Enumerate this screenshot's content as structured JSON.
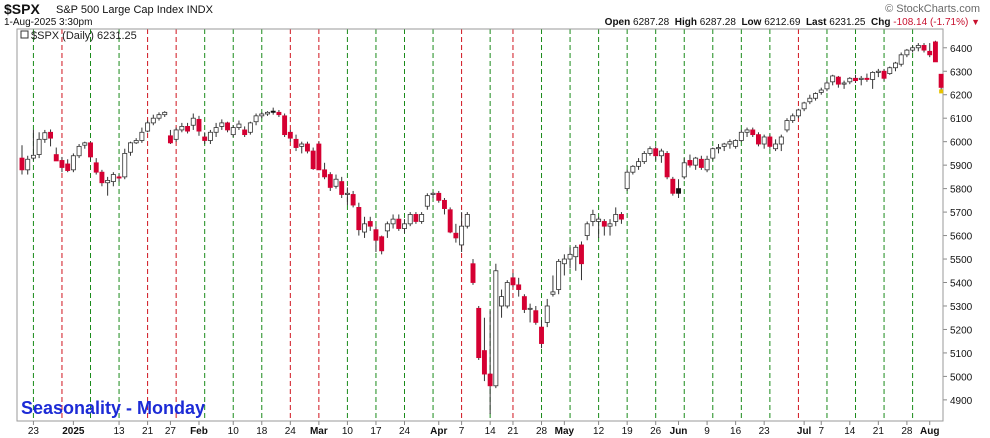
{
  "header": {
    "symbol": "$SPX",
    "name": "S&P 500 Large Cap Index INDX",
    "date": "1-Aug-2025 3:30pm",
    "brand": "© StockCharts.com",
    "open_label": "Open",
    "open": "6287.28",
    "high_label": "High",
    "high": "6287.28",
    "low_label": "Low",
    "low": "6212.69",
    "last_label": "Last",
    "last": "6231.25",
    "chg_label": "Chg",
    "chg": "-108.14 (-1.71%)",
    "change_icon": "down-triangle-icon"
  },
  "chart_data": {
    "type": "candlestick",
    "legend": "$SPX (Daily) 6231.25",
    "title": "Seasonality - Monday",
    "ylim": [
      4810,
      6480
    ],
    "y_ticks": [
      4900,
      5000,
      5100,
      5200,
      5300,
      5400,
      5500,
      5600,
      5700,
      5800,
      5900,
      6000,
      6100,
      6200,
      6300,
      6400
    ],
    "x_ticks": [
      {
        "label": "23",
        "idx": 2
      },
      {
        "label": "2025",
        "idx": 9,
        "bold": true
      },
      {
        "label": "13",
        "idx": 17
      },
      {
        "label": "21",
        "idx": 22
      },
      {
        "label": "27",
        "idx": 26
      },
      {
        "label": "Feb",
        "idx": 31,
        "bold": true
      },
      {
        "label": "10",
        "idx": 37
      },
      {
        "label": "18",
        "idx": 42
      },
      {
        "label": "24",
        "idx": 47
      },
      {
        "label": "Mar",
        "idx": 52,
        "bold": true
      },
      {
        "label": "10",
        "idx": 57
      },
      {
        "label": "17",
        "idx": 62
      },
      {
        "label": "24",
        "idx": 67
      },
      {
        "label": "Apr",
        "idx": 73,
        "bold": true
      },
      {
        "label": "7",
        "idx": 77
      },
      {
        "label": "14",
        "idx": 82
      },
      {
        "label": "21",
        "idx": 86
      },
      {
        "label": "28",
        "idx": 91
      },
      {
        "label": "May",
        "idx": 95,
        "bold": true
      },
      {
        "label": "12",
        "idx": 101
      },
      {
        "label": "19",
        "idx": 106
      },
      {
        "label": "26",
        "idx": 111
      },
      {
        "label": "Jun",
        "idx": 115,
        "bold": true
      },
      {
        "label": "9",
        "idx": 120
      },
      {
        "label": "16",
        "idx": 125
      },
      {
        "label": "23",
        "idx": 130
      },
      {
        "label": "Jul",
        "idx": 137,
        "bold": true
      },
      {
        "label": "7",
        "idx": 140
      },
      {
        "label": "14",
        "idx": 145
      },
      {
        "label": "21",
        "idx": 150
      },
      {
        "label": "28",
        "idx": 155
      },
      {
        "label": "Aug",
        "idx": 159,
        "bold": true
      }
    ],
    "monday_lines": [
      {
        "idx": 2,
        "color": "green"
      },
      {
        "idx": 7,
        "color": "red"
      },
      {
        "idx": 12,
        "color": "green"
      },
      {
        "idx": 17,
        "color": "green"
      },
      {
        "idx": 22,
        "color": "red"
      },
      {
        "idx": 27,
        "color": "red"
      },
      {
        "idx": 32,
        "color": "green"
      },
      {
        "idx": 37,
        "color": "green"
      },
      {
        "idx": 42,
        "color": "green"
      },
      {
        "idx": 47,
        "color": "red"
      },
      {
        "idx": 52,
        "color": "red"
      },
      {
        "idx": 57,
        "color": "green"
      },
      {
        "idx": 62,
        "color": "green"
      },
      {
        "idx": 67,
        "color": "green"
      },
      {
        "idx": 72,
        "color": "green"
      },
      {
        "idx": 77,
        "color": "red"
      },
      {
        "idx": 82,
        "color": "green"
      },
      {
        "idx": 86,
        "color": "red"
      },
      {
        "idx": 91,
        "color": "green"
      },
      {
        "idx": 96,
        "color": "green"
      },
      {
        "idx": 101,
        "color": "green"
      },
      {
        "idx": 106,
        "color": "green"
      },
      {
        "idx": 111,
        "color": "green"
      },
      {
        "idx": 116,
        "color": "green"
      },
      {
        "idx": 121,
        "color": "green"
      },
      {
        "idx": 126,
        "color": "green"
      },
      {
        "idx": 131,
        "color": "green"
      },
      {
        "idx": 136,
        "color": "red"
      },
      {
        "idx": 141,
        "color": "green"
      },
      {
        "idx": 146,
        "color": "green"
      },
      {
        "idx": 151,
        "color": "green"
      },
      {
        "idx": 156,
        "color": "green"
      }
    ],
    "candle_colors": {
      "up": "#ffffff",
      "down": "#d50032",
      "down_black": "#111111",
      "outline": "#333333"
    },
    "candles": [
      {
        "o": 5930,
        "h": 5985,
        "l": 5860,
        "c": 5880
      },
      {
        "o": 5880,
        "h": 5940,
        "l": 5860,
        "c": 5925
      },
      {
        "o": 5930,
        "h": 6050,
        "l": 5920,
        "c": 5942
      },
      {
        "o": 5945,
        "h": 6040,
        "l": 5930,
        "c": 6010
      },
      {
        "o": 6010,
        "h": 6050,
        "l": 5995,
        "c": 6038
      },
      {
        "o": 6040,
        "h": 6052,
        "l": 5980,
        "c": 6015
      },
      {
        "o": 5945,
        "h": 5975,
        "l": 5920,
        "c": 5918
      },
      {
        "o": 5920,
        "h": 5935,
        "l": 5870,
        "c": 5890
      },
      {
        "o": 5905,
        "h": 5925,
        "l": 5870,
        "c": 5877
      },
      {
        "o": 5880,
        "h": 5950,
        "l": 5870,
        "c": 5940
      },
      {
        "o": 5940,
        "h": 5990,
        "l": 5930,
        "c": 5980
      },
      {
        "o": 5985,
        "h": 6000,
        "l": 5970,
        "c": 5995
      },
      {
        "o": 5995,
        "h": 6000,
        "l": 5920,
        "c": 5935
      },
      {
        "o": 5910,
        "h": 5930,
        "l": 5860,
        "c": 5870
      },
      {
        "o": 5870,
        "h": 5880,
        "l": 5810,
        "c": 5825
      },
      {
        "o": 5825,
        "h": 5850,
        "l": 5770,
        "c": 5835
      },
      {
        "o": 5830,
        "h": 5870,
        "l": 5810,
        "c": 5860
      },
      {
        "o": 5850,
        "h": 5860,
        "l": 5830,
        "c": 5845
      },
      {
        "o": 5850,
        "h": 5970,
        "l": 5840,
        "c": 5950
      },
      {
        "o": 5955,
        "h": 6000,
        "l": 5940,
        "c": 5995
      },
      {
        "o": 5995,
        "h": 6015,
        "l": 5990,
        "c": 6005
      },
      {
        "o": 6005,
        "h": 6060,
        "l": 5995,
        "c": 6040
      },
      {
        "o": 6045,
        "h": 6090,
        "l": 6040,
        "c": 6080
      },
      {
        "o": 6080,
        "h": 6115,
        "l": 6070,
        "c": 6100
      },
      {
        "o": 6100,
        "h": 6125,
        "l": 6090,
        "c": 6115
      },
      {
        "o": 6115,
        "h": 6130,
        "l": 6105,
        "c": 6125
      },
      {
        "o": 6025,
        "h": 6050,
        "l": 5990,
        "c": 5995
      },
      {
        "o": 6010,
        "h": 6060,
        "l": 6000,
        "c": 6050
      },
      {
        "o": 6050,
        "h": 6080,
        "l": 6040,
        "c": 6065
      },
      {
        "o": 6065,
        "h": 6080,
        "l": 6035,
        "c": 6045
      },
      {
        "o": 6070,
        "h": 6120,
        "l": 6050,
        "c": 6100
      },
      {
        "o": 6095,
        "h": 6110,
        "l": 6025,
        "c": 6045
      },
      {
        "o": 6020,
        "h": 6040,
        "l": 5990,
        "c": 6005
      },
      {
        "o": 6005,
        "h": 6050,
        "l": 5990,
        "c": 6040
      },
      {
        "o": 6040,
        "h": 6080,
        "l": 6020,
        "c": 6060
      },
      {
        "o": 6065,
        "h": 6095,
        "l": 6050,
        "c": 6080
      },
      {
        "o": 6080,
        "h": 6085,
        "l": 6040,
        "c": 6050
      },
      {
        "o": 6030,
        "h": 6070,
        "l": 6020,
        "c": 6060
      },
      {
        "o": 6060,
        "h": 6090,
        "l": 6050,
        "c": 6075
      },
      {
        "o": 6050,
        "h": 6065,
        "l": 6020,
        "c": 6030
      },
      {
        "o": 6040,
        "h": 6085,
        "l": 6030,
        "c": 6080
      },
      {
        "o": 6085,
        "h": 6120,
        "l": 6070,
        "c": 6110
      },
      {
        "o": 6110,
        "h": 6125,
        "l": 6100,
        "c": 6118
      },
      {
        "o": 6118,
        "h": 6130,
        "l": 6110,
        "c": 6125
      },
      {
        "o": 6130,
        "h": 6145,
        "l": 6115,
        "c": 6125
      },
      {
        "o": 6125,
        "h": 6135,
        "l": 6105,
        "c": 6115
      },
      {
        "o": 6110,
        "h": 6120,
        "l": 6020,
        "c": 6030
      },
      {
        "o": 6040,
        "h": 6050,
        "l": 6000,
        "c": 6015
      },
      {
        "o": 6010,
        "h": 6030,
        "l": 5960,
        "c": 5975
      },
      {
        "o": 5980,
        "h": 6000,
        "l": 5950,
        "c": 5990
      },
      {
        "o": 5990,
        "h": 6000,
        "l": 5950,
        "c": 5960
      },
      {
        "o": 5960,
        "h": 5975,
        "l": 5880,
        "c": 5885
      },
      {
        "o": 5990,
        "h": 6000,
        "l": 5880,
        "c": 5880
      },
      {
        "o": 5880,
        "h": 5910,
        "l": 5840,
        "c": 5850
      },
      {
        "o": 5860,
        "h": 5870,
        "l": 5790,
        "c": 5805
      },
      {
        "o": 5810,
        "h": 5860,
        "l": 5800,
        "c": 5840
      },
      {
        "o": 5830,
        "h": 5850,
        "l": 5760,
        "c": 5775
      },
      {
        "o": 5775,
        "h": 5805,
        "l": 5730,
        "c": 5780
      },
      {
        "o": 5775,
        "h": 5790,
        "l": 5720,
        "c": 5730
      },
      {
        "o": 5720,
        "h": 5740,
        "l": 5600,
        "c": 5625
      },
      {
        "o": 5615,
        "h": 5680,
        "l": 5590,
        "c": 5650
      },
      {
        "o": 5660,
        "h": 5680,
        "l": 5620,
        "c": 5640
      },
      {
        "o": 5625,
        "h": 5640,
        "l": 5530,
        "c": 5580
      },
      {
        "o": 5595,
        "h": 5600,
        "l": 5520,
        "c": 5535
      },
      {
        "o": 5620,
        "h": 5660,
        "l": 5590,
        "c": 5650
      },
      {
        "o": 5650,
        "h": 5690,
        "l": 5630,
        "c": 5670
      },
      {
        "o": 5670,
        "h": 5690,
        "l": 5620,
        "c": 5630
      },
      {
        "o": 5630,
        "h": 5670,
        "l": 5610,
        "c": 5650
      },
      {
        "o": 5650,
        "h": 5700,
        "l": 5640,
        "c": 5690
      },
      {
        "o": 5690,
        "h": 5700,
        "l": 5650,
        "c": 5660
      },
      {
        "o": 5660,
        "h": 5700,
        "l": 5650,
        "c": 5690
      },
      {
        "o": 5725,
        "h": 5780,
        "l": 5710,
        "c": 5770
      },
      {
        "o": 5775,
        "h": 5785,
        "l": 5760,
        "c": 5780
      },
      {
        "o": 5780,
        "h": 5790,
        "l": 5740,
        "c": 5750
      },
      {
        "o": 5750,
        "h": 5760,
        "l": 5690,
        "c": 5715
      },
      {
        "o": 5710,
        "h": 5720,
        "l": 5610,
        "c": 5615
      },
      {
        "o": 5610,
        "h": 5650,
        "l": 5570,
        "c": 5590
      },
      {
        "o": 5560,
        "h": 5700,
        "l": 5530,
        "c": 5640
      },
      {
        "o": 5640,
        "h": 5700,
        "l": 5630,
        "c": 5690
      },
      {
        "o": 5480,
        "h": 5500,
        "l": 5390,
        "c": 5400
      },
      {
        "o": 5290,
        "h": 5300,
        "l": 5070,
        "c": 5080
      },
      {
        "o": 5110,
        "h": 5250,
        "l": 4980,
        "c": 5010
      },
      {
        "o": 5010,
        "h": 5280,
        "l": 4840,
        "c": 4960
      },
      {
        "o": 4960,
        "h": 5480,
        "l": 4950,
        "c": 5450
      },
      {
        "o": 5300,
        "h": 5370,
        "l": 5250,
        "c": 5340
      },
      {
        "o": 5300,
        "h": 5410,
        "l": 5290,
        "c": 5400
      },
      {
        "o": 5420,
        "h": 5440,
        "l": 5380,
        "c": 5390
      },
      {
        "o": 5390,
        "h": 5420,
        "l": 5340,
        "c": 5370
      },
      {
        "o": 5340,
        "h": 5350,
        "l": 5270,
        "c": 5285
      },
      {
        "o": 5290,
        "h": 5310,
        "l": 5230,
        "c": 5290
      },
      {
        "o": 5280,
        "h": 5300,
        "l": 5220,
        "c": 5230
      },
      {
        "o": 5210,
        "h": 5240,
        "l": 5120,
        "c": 5140
      },
      {
        "o": 5230,
        "h": 5330,
        "l": 5210,
        "c": 5300
      },
      {
        "o": 5350,
        "h": 5430,
        "l": 5340,
        "c": 5360
      },
      {
        "o": 5370,
        "h": 5500,
        "l": 5350,
        "c": 5490
      },
      {
        "o": 5480,
        "h": 5520,
        "l": 5430,
        "c": 5500
      },
      {
        "o": 5500,
        "h": 5550,
        "l": 5460,
        "c": 5520
      },
      {
        "o": 5510,
        "h": 5560,
        "l": 5450,
        "c": 5550
      },
      {
        "o": 5560,
        "h": 5575,
        "l": 5410,
        "c": 5480
      },
      {
        "o": 5600,
        "h": 5660,
        "l": 5580,
        "c": 5650
      },
      {
        "o": 5660,
        "h": 5710,
        "l": 5640,
        "c": 5690
      },
      {
        "o": 5660,
        "h": 5680,
        "l": 5590,
        "c": 5670
      },
      {
        "o": 5660,
        "h": 5670,
        "l": 5600,
        "c": 5640
      },
      {
        "o": 5640,
        "h": 5670,
        "l": 5600,
        "c": 5650
      },
      {
        "o": 5660,
        "h": 5720,
        "l": 5640,
        "c": 5690
      },
      {
        "o": 5690,
        "h": 5700,
        "l": 5650,
        "c": 5670
      },
      {
        "o": 5800,
        "h": 5880,
        "l": 5790,
        "c": 5870
      },
      {
        "o": 5870,
        "h": 5900,
        "l": 5860,
        "c": 5895
      },
      {
        "o": 5895,
        "h": 5930,
        "l": 5880,
        "c": 5915
      },
      {
        "o": 5915,
        "h": 5960,
        "l": 5905,
        "c": 5950
      },
      {
        "o": 5950,
        "h": 5980,
        "l": 5940,
        "c": 5970
      },
      {
        "o": 5970,
        "h": 5980,
        "l": 5920,
        "c": 5940
      },
      {
        "o": 5940,
        "h": 5970,
        "l": 5910,
        "c": 5960
      },
      {
        "o": 5950,
        "h": 5960,
        "l": 5840,
        "c": 5850
      },
      {
        "o": 5840,
        "h": 5850,
        "l": 5770,
        "c": 5780
      },
      {
        "o": 5800,
        "h": 5840,
        "l": 5760,
        "c": 5780
      },
      {
        "o": 5850,
        "h": 5930,
        "l": 5840,
        "c": 5910
      },
      {
        "o": 5920,
        "h": 5945,
        "l": 5890,
        "c": 5900
      },
      {
        "o": 5900,
        "h": 5935,
        "l": 5880,
        "c": 5930
      },
      {
        "o": 5925,
        "h": 5940,
        "l": 5880,
        "c": 5890
      },
      {
        "o": 5880,
        "h": 5940,
        "l": 5870,
        "c": 5925
      },
      {
        "o": 5930,
        "h": 5975,
        "l": 5920,
        "c": 5970
      },
      {
        "o": 5970,
        "h": 5990,
        "l": 5950,
        "c": 5975
      },
      {
        "o": 5980,
        "h": 5995,
        "l": 5960,
        "c": 5990
      },
      {
        "o": 5990,
        "h": 6010,
        "l": 5970,
        "c": 6000
      },
      {
        "o": 5980,
        "h": 6010,
        "l": 5970,
        "c": 6005
      },
      {
        "o": 6005,
        "h": 6050,
        "l": 6000,
        "c": 6040
      },
      {
        "o": 6040,
        "h": 6060,
        "l": 6020,
        "c": 6050
      },
      {
        "o": 6050,
        "h": 6060,
        "l": 6020,
        "c": 6030
      },
      {
        "o": 6030,
        "h": 6040,
        "l": 5980,
        "c": 5990
      },
      {
        "o": 5990,
        "h": 6030,
        "l": 5970,
        "c": 6020
      },
      {
        "o": 6020,
        "h": 6030,
        "l": 5970,
        "c": 5980
      },
      {
        "o": 5970,
        "h": 6010,
        "l": 5960,
        "c": 5990
      },
      {
        "o": 5990,
        "h": 6030,
        "l": 5960,
        "c": 6020
      },
      {
        "o": 6050,
        "h": 6100,
        "l": 6040,
        "c": 6090
      },
      {
        "o": 6090,
        "h": 6120,
        "l": 6080,
        "c": 6110
      },
      {
        "o": 6110,
        "h": 6140,
        "l": 6100,
        "c": 6135
      },
      {
        "o": 6140,
        "h": 6170,
        "l": 6130,
        "c": 6165
      },
      {
        "o": 6170,
        "h": 6200,
        "l": 6160,
        "c": 6185
      },
      {
        "o": 6185,
        "h": 6210,
        "l": 6175,
        "c": 6205
      },
      {
        "o": 6210,
        "h": 6230,
        "l": 6200,
        "c": 6220
      },
      {
        "o": 6225,
        "h": 6260,
        "l": 6215,
        "c": 6250
      },
      {
        "o": 6255,
        "h": 6285,
        "l": 6240,
        "c": 6280
      },
      {
        "o": 6275,
        "h": 6280,
        "l": 6230,
        "c": 6245
      },
      {
        "o": 6245,
        "h": 6260,
        "l": 6225,
        "c": 6250
      },
      {
        "o": 6255,
        "h": 6275,
        "l": 6245,
        "c": 6270
      },
      {
        "o": 6270,
        "h": 6285,
        "l": 6250,
        "c": 6260
      },
      {
        "o": 6265,
        "h": 6280,
        "l": 6240,
        "c": 6270
      },
      {
        "o": 6270,
        "h": 6290,
        "l": 6255,
        "c": 6265
      },
      {
        "o": 6265,
        "h": 6300,
        "l": 6225,
        "c": 6295
      },
      {
        "o": 6295,
        "h": 6310,
        "l": 6275,
        "c": 6300
      },
      {
        "o": 6300,
        "h": 6310,
        "l": 6260,
        "c": 6270
      },
      {
        "o": 6290,
        "h": 6320,
        "l": 6285,
        "c": 6315
      },
      {
        "o": 6315,
        "h": 6340,
        "l": 6300,
        "c": 6335
      },
      {
        "o": 6330,
        "h": 6380,
        "l": 6320,
        "c": 6370
      },
      {
        "o": 6370,
        "h": 6395,
        "l": 6360,
        "c": 6390
      },
      {
        "o": 6390,
        "h": 6410,
        "l": 6380,
        "c": 6400
      },
      {
        "o": 6400,
        "h": 6420,
        "l": 6385,
        "c": 6410
      },
      {
        "o": 6410,
        "h": 6420,
        "l": 6380,
        "c": 6390
      },
      {
        "o": 6385,
        "h": 6420,
        "l": 6360,
        "c": 6370
      },
      {
        "o": 6425,
        "h": 6430,
        "l": 6340,
        "c": 6340
      },
      {
        "o": 6287.28,
        "h": 6287.28,
        "l": 6212.69,
        "c": 6231.25
      }
    ]
  }
}
